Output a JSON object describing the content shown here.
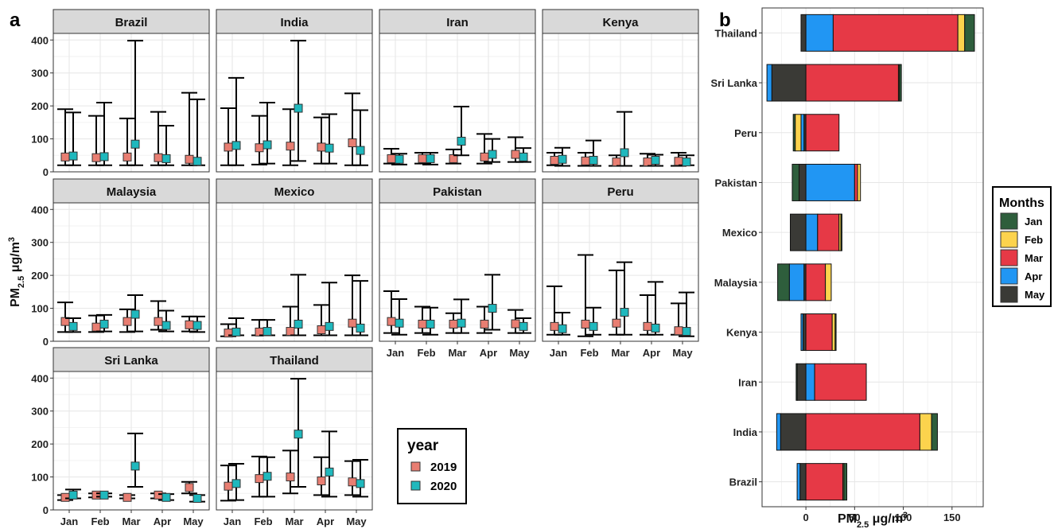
{
  "chart_data": [
    {
      "panel_label": "a",
      "type": "scatter",
      "ylabel_main": "PM",
      "ylabel_sub": "2.5",
      "ylabel_tail": " μg/m",
      "ylabel_sup": "3",
      "ylim": [
        0,
        420
      ],
      "yticks": [
        0,
        100,
        200,
        300,
        400
      ],
      "months": [
        "Jan",
        "Feb",
        "Mar",
        "Apr",
        "May"
      ],
      "legend_title": "year",
      "legend_placement": "bottom-right",
      "series": [
        {
          "name": "2019",
          "color": "#e87e72"
        },
        {
          "name": "2020",
          "color": "#1fb8bd"
        }
      ],
      "facets": [
        {
          "name": "Brazil",
          "s2019": [
            [
              45,
              20,
              190
            ],
            [
              43,
              20,
              170
            ],
            [
              45,
              20,
              162
            ],
            [
              43,
              20,
              182
            ],
            [
              38,
              20,
              240
            ]
          ],
          "s2020": [
            [
              48,
              20,
              180
            ],
            [
              46,
              20,
              210
            ],
            [
              84,
              20,
              398
            ],
            [
              40,
              20,
              140
            ],
            [
              32,
              20,
              220
            ]
          ]
        },
        {
          "name": "India",
          "s2019": [
            [
              75,
              20,
              193
            ],
            [
              73,
              22,
              170
            ],
            [
              78,
              20,
              190
            ],
            [
              75,
              25,
              165
            ],
            [
              88,
              20,
              238
            ]
          ],
          "s2020": [
            [
              80,
              20,
              285
            ],
            [
              82,
              25,
              210
            ],
            [
              193,
              33,
              398
            ],
            [
              72,
              25,
              175
            ],
            [
              65,
              20,
              187
            ]
          ]
        },
        {
          "name": "Iran",
          "s2019": [
            [
              40,
              25,
              70
            ],
            [
              40,
              25,
              58
            ],
            [
              40,
              25,
              68
            ],
            [
              45,
              25,
              115
            ],
            [
              53,
              30,
              105
            ]
          ],
          "s2020": [
            [
              38,
              22,
              55
            ],
            [
              40,
              22,
              58
            ],
            [
              93,
              50,
              198
            ],
            [
              53,
              30,
              100
            ],
            [
              45,
              30,
              72
            ]
          ]
        },
        {
          "name": "Kenya",
          "s2019": [
            [
              35,
              20,
              58
            ],
            [
              33,
              18,
              58
            ],
            [
              30,
              18,
              50
            ],
            [
              30,
              18,
              55
            ],
            [
              32,
              18,
              58
            ]
          ],
          "s2020": [
            [
              38,
              18,
              73
            ],
            [
              35,
              18,
              95
            ],
            [
              58,
              18,
              182
            ],
            [
              35,
              18,
              52
            ],
            [
              30,
              20,
              50
            ]
          ]
        },
        {
          "name": "Malaysia",
          "s2019": [
            [
              60,
              28,
              118
            ],
            [
              43,
              28,
              78
            ],
            [
              60,
              28,
              97
            ],
            [
              60,
              35,
              122
            ],
            [
              50,
              30,
              75
            ]
          ],
          "s2020": [
            [
              45,
              28,
              70
            ],
            [
              52,
              30,
              80
            ],
            [
              82,
              30,
              140
            ],
            [
              48,
              30,
              93
            ],
            [
              48,
              28,
              75
            ]
          ]
        },
        {
          "name": "Mexico",
          "s2019": [
            [
              25,
              15,
              52
            ],
            [
              28,
              18,
              65
            ],
            [
              30,
              18,
              105
            ],
            [
              35,
              18,
              110
            ],
            [
              55,
              18,
              200
            ]
          ],
          "s2020": [
            [
              28,
              18,
              70
            ],
            [
              30,
              18,
              65
            ],
            [
              52,
              18,
              202
            ],
            [
              45,
              18,
              178
            ],
            [
              40,
              18,
              183
            ]
          ]
        },
        {
          "name": "Pakistan",
          "s2019": [
            [
              60,
              25,
              152
            ],
            [
              52,
              25,
              105
            ],
            [
              52,
              25,
              85
            ],
            [
              52,
              25,
              105
            ],
            [
              53,
              25,
              95
            ]
          ],
          "s2020": [
            [
              55,
              20,
              128
            ],
            [
              52,
              20,
              102
            ],
            [
              55,
              25,
              127
            ],
            [
              100,
              35,
              202
            ],
            [
              45,
              25,
              70
            ]
          ]
        },
        {
          "name": "Peru",
          "s2019": [
            [
              45,
              20,
              167
            ],
            [
              52,
              15,
              262
            ],
            [
              55,
              20,
              215
            ],
            [
              45,
              20,
              140
            ],
            [
              32,
              20,
              115
            ]
          ],
          "s2020": [
            [
              38,
              20,
              87
            ],
            [
              45,
              20,
              102
            ],
            [
              88,
              20,
              240
            ],
            [
              40,
              20,
              180
            ],
            [
              30,
              15,
              148
            ]
          ]
        },
        {
          "name": "Sri Lanka",
          "s2019": [
            [
              38,
              30,
              45
            ],
            [
              45,
              38,
              50
            ],
            [
              38,
              35,
              45
            ],
            [
              45,
              35,
              50
            ],
            [
              68,
              50,
              85
            ]
          ],
          "s2020": [
            [
              45,
              35,
              62
            ],
            [
              45,
              40,
              50
            ],
            [
              133,
              70,
              232
            ],
            [
              38,
              30,
              48
            ],
            [
              35,
              25,
              45
            ]
          ]
        },
        {
          "name": "Thailand",
          "s2019": [
            [
              72,
              28,
              135
            ],
            [
              95,
              40,
              162
            ],
            [
              100,
              50,
              180
            ],
            [
              88,
              45,
              160
            ],
            [
              85,
              45,
              148
            ]
          ],
          "s2020": [
            [
              80,
              30,
              140
            ],
            [
              102,
              40,
              160
            ],
            [
              230,
              70,
              398
            ],
            [
              115,
              40,
              238
            ],
            [
              80,
              40,
              152
            ]
          ]
        }
      ]
    },
    {
      "panel_label": "b",
      "type": "bar",
      "orientation": "horizontal",
      "stacked": true,
      "xlabel_main": "PM",
      "xlabel_sub": "2.5",
      "xlabel_tail": " μg/m",
      "xlabel_sup": "3",
      "xlim": [
        -45,
        182
      ],
      "xticks": [
        0,
        50,
        100,
        150
      ],
      "legend_title": "Months",
      "legend_placement": "right",
      "month_colors": [
        {
          "name": "Jan",
          "color": "#2e5e3c"
        },
        {
          "name": "Feb",
          "color": "#fcd34d"
        },
        {
          "name": "Mar",
          "color": "#e63946"
        },
        {
          "name": "Apr",
          "color": "#2196f3"
        },
        {
          "name": "May",
          "color": "#3a3a36"
        }
      ],
      "categories": [
        "Thailand",
        "Sri Lanka",
        "Peru",
        "Pakistan",
        "Mexico",
        "Malaysia",
        "Kenya",
        "Iran",
        "India",
        "Brazil"
      ],
      "series": [
        {
          "name": "Jan",
          "values": [
            10,
            2,
            -2,
            -7,
            1,
            -12,
            1,
            -1,
            6,
            3
          ]
        },
        {
          "name": "Feb",
          "values": [
            7,
            1,
            -6,
            3,
            2,
            6,
            3,
            0,
            12,
            1
          ]
        },
        {
          "name": "Mar",
          "values": [
            128,
            95,
            34,
            3,
            22,
            20,
            27,
            53,
            117,
            38
          ]
        },
        {
          "name": "Apr",
          "values": [
            28,
            -5,
            -3,
            50,
            12,
            -15,
            -2,
            9,
            -4,
            -3
          ]
        },
        {
          "name": "May",
          "values": [
            -5,
            -35,
            -2,
            -7,
            -16,
            -2,
            -3,
            -9,
            -26,
            -6
          ]
        }
      ]
    }
  ]
}
